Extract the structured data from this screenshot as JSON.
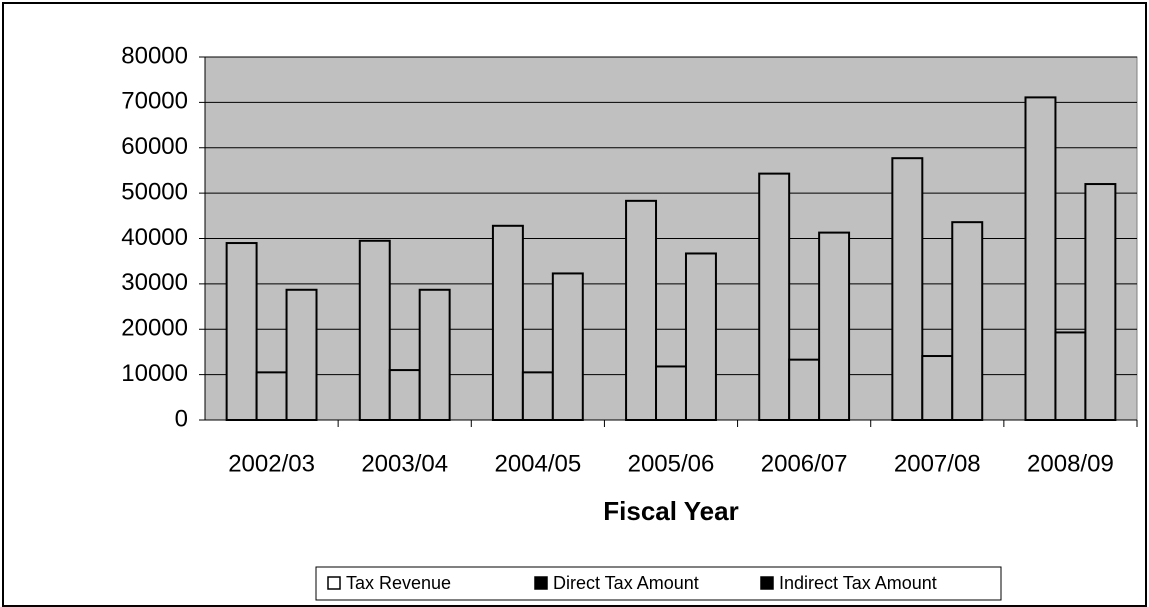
{
  "chart_data": {
    "type": "bar",
    "x_label": "Fiscal Year",
    "categories": [
      "2002/03",
      "2003/04",
      "2004/05",
      "2005/06",
      "2006/07",
      "2007/08",
      "2008/09"
    ],
    "series": [
      {
        "name": "Tax Revenue",
        "color": "#c0c0c0",
        "legend_color": "#ffffff",
        "values": [
          39000,
          39500,
          42800,
          48300,
          54300,
          57700,
          71100
        ]
      },
      {
        "name": "Direct Tax Amount",
        "color": "#c0c0c0",
        "legend_color": "#000000",
        "values": [
          10500,
          11000,
          10500,
          11800,
          13300,
          14100,
          19300
        ]
      },
      {
        "name": "Indirect Tax Amount",
        "color": "#c0c0c0",
        "legend_color": "#000000",
        "values": [
          28700,
          28700,
          32300,
          36700,
          41300,
          43600,
          52000
        ]
      }
    ],
    "ylim": [
      0,
      80000
    ],
    "yticks": [
      0,
      10000,
      20000,
      30000,
      40000,
      50000,
      60000,
      70000,
      80000
    ],
    "grid": true,
    "plot_color": "#c0c0c0",
    "legend": "bottom"
  }
}
